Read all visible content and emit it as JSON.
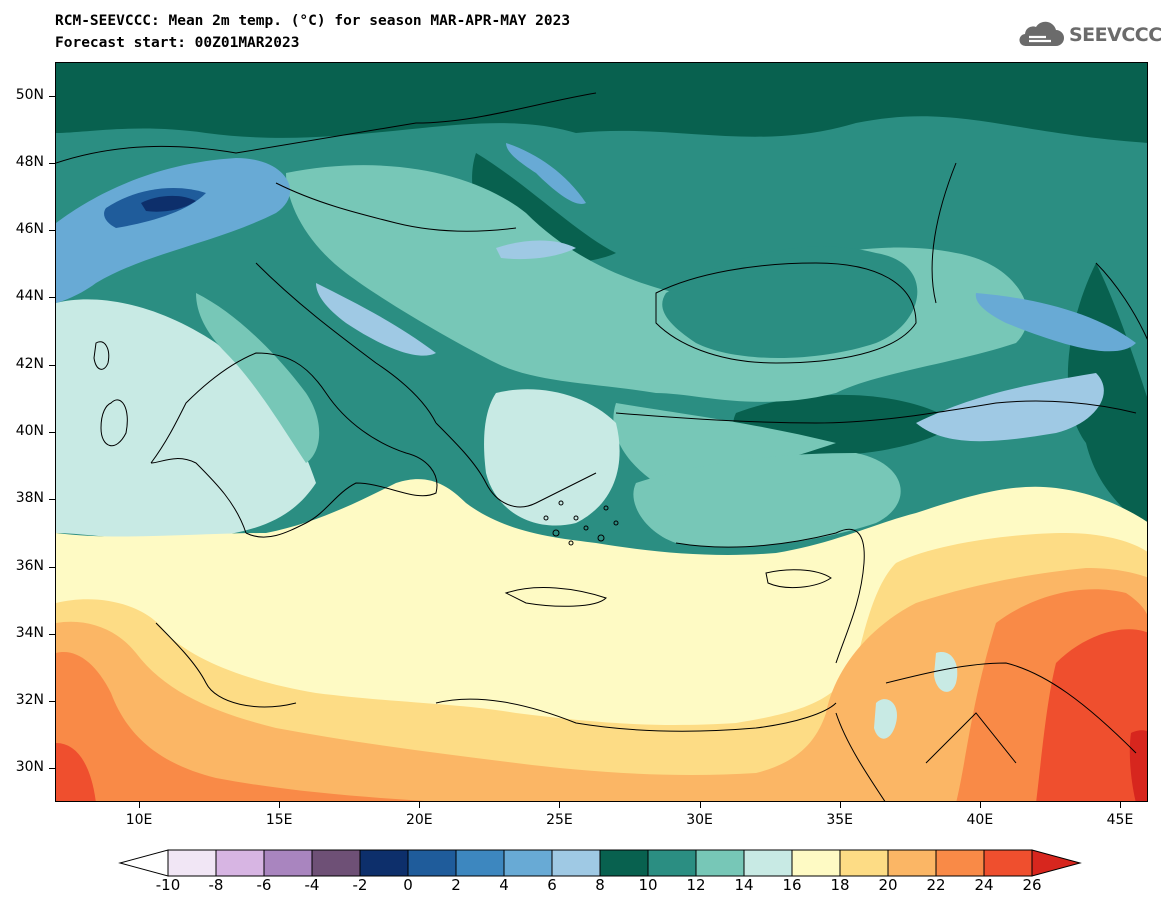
{
  "header": {
    "title_line1": "RCM-SEEVCCC: Mean 2m temp. (°C) for season MAR-APR-MAY 2023",
    "title_line2": "Forecast start: 00Z01MAR2023",
    "logo_text": "SEEVCCC",
    "logo_icon": "cloud-icon"
  },
  "map": {
    "region": "Eastern Mediterranean / Balkans / Black Sea",
    "lon_range": [
      7,
      46
    ],
    "lat_range": [
      29,
      51
    ],
    "lat_ticks": [
      {
        "value": 50,
        "label": "50N"
      },
      {
        "value": 48,
        "label": "48N"
      },
      {
        "value": 46,
        "label": "46N"
      },
      {
        "value": 44,
        "label": "44N"
      },
      {
        "value": 42,
        "label": "42N"
      },
      {
        "value": 40,
        "label": "40N"
      },
      {
        "value": 38,
        "label": "38N"
      },
      {
        "value": 36,
        "label": "36N"
      },
      {
        "value": 34,
        "label": "34N"
      },
      {
        "value": 32,
        "label": "32N"
      },
      {
        "value": 30,
        "label": "30N"
      }
    ],
    "lon_ticks": [
      {
        "value": 10,
        "label": "10E"
      },
      {
        "value": 15,
        "label": "15E"
      },
      {
        "value": 20,
        "label": "20E"
      },
      {
        "value": 25,
        "label": "25E"
      },
      {
        "value": 30,
        "label": "30E"
      },
      {
        "value": 35,
        "label": "35E"
      },
      {
        "value": 40,
        "label": "40E"
      },
      {
        "value": 45,
        "label": "45E"
      }
    ]
  },
  "colorbar": {
    "labels": [
      "-10",
      "-8",
      "-6",
      "-4",
      "-2",
      "0",
      "2",
      "4",
      "6",
      "8",
      "10",
      "12",
      "14",
      "16",
      "18",
      "20",
      "22",
      "24",
      "26"
    ],
    "low_extend_color": "#ffffff",
    "high_extend_color": "#d7261e",
    "colors": [
      "#f1e6f5",
      "#d7b5e3",
      "#a985bf",
      "#6e5076",
      "#0d2f6b",
      "#1f5c9b",
      "#3d87bf",
      "#68aad5",
      "#9fc9e4",
      "#08614f",
      "#2b8e82",
      "#77c7b7",
      "#c8eae4",
      "#fefac4",
      "#fddc85",
      "#fbb665",
      "#f98a47",
      "#ef4f2e"
    ]
  },
  "palette": {
    "dark_green": "#08614f",
    "mid_green": "#2b8e82",
    "light_green": "#77c7b7",
    "pale_green": "#c8eae4",
    "cream": "#fefac4",
    "yellow": "#fddc85",
    "light_orange": "#fbb665",
    "orange": "#f98a47",
    "red_orange": "#ef4f2e",
    "blue": "#68aad5",
    "light_blue": "#9fc9e4",
    "navy": "#1f5c9b"
  }
}
